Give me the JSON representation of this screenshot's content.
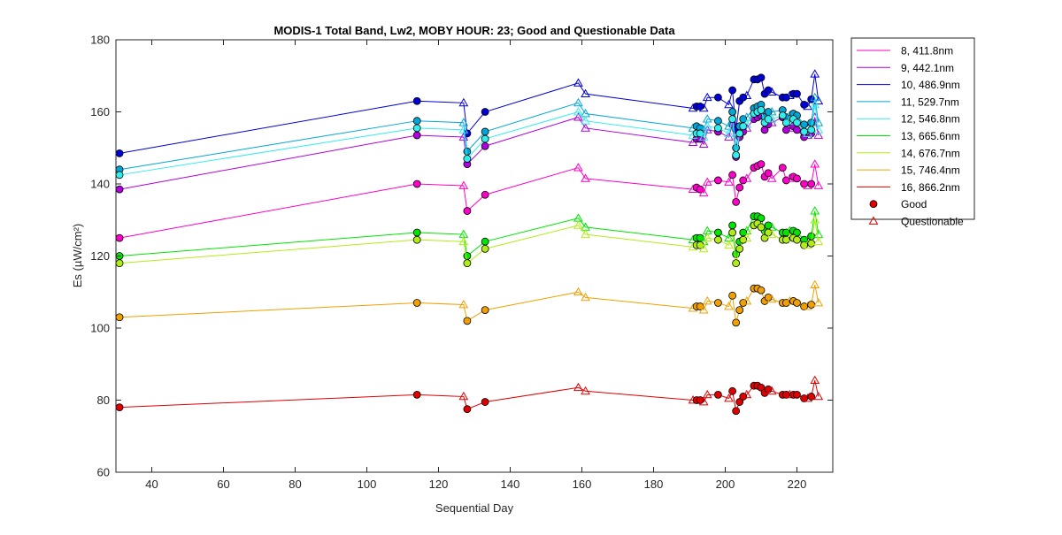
{
  "chart_data": {
    "type": "line",
    "title": "MODIS-1 Total Band,  Lw2, MOBY HOUR: 23;  Good and Questionable Data",
    "xlabel": "Sequential Day",
    "ylabel": "Es (µW/cm²)",
    "xlim": [
      30,
      230
    ],
    "ylim": [
      60,
      180
    ],
    "xticks": [
      "40",
      "60",
      "80",
      "100",
      "120",
      "140",
      "160",
      "180",
      "200",
      "220"
    ],
    "yticks": [
      "60",
      "80",
      "100",
      "120",
      "140",
      "160",
      "180"
    ],
    "grid": false,
    "legend_position": "outside-right",
    "x": [
      31,
      114,
      127,
      128,
      133,
      159,
      161,
      191,
      192,
      193,
      194,
      195,
      198,
      201,
      202,
      203,
      204,
      205,
      206,
      208,
      209,
      210,
      211,
      212,
      213,
      216,
      217,
      218,
      219,
      220,
      222,
      223,
      224,
      225,
      226
    ],
    "status": [
      "G",
      "G",
      "Q",
      "G",
      "G",
      "Q",
      "Q",
      "Q",
      "G",
      "G",
      "Q",
      "Q",
      "G",
      "Q",
      "G",
      "G",
      "G",
      "G",
      "Q",
      "G",
      "G",
      "G",
      "G",
      "G",
      "Q",
      "G",
      "G",
      "Q",
      "G",
      "G",
      "G",
      "Q",
      "G",
      "Q",
      "Q"
    ],
    "series": [
      {
        "name": " 8, 411.8nm",
        "color": "#ff00c8",
        "values": [
          125,
          140,
          139.5,
          132.5,
          137,
          144.5,
          141.5,
          138.5,
          139,
          138.5,
          137.5,
          140.5,
          141,
          140.5,
          142.5,
          135,
          139,
          141,
          141.5,
          144.5,
          145,
          145.5,
          142,
          143,
          141.5,
          144.5,
          141,
          141.5,
          142,
          141.5,
          140,
          139.5,
          140,
          145.5,
          139.5
        ]
      },
      {
        "name": " 9, 442.1nm",
        "color": "#b000e0",
        "values": [
          138.5,
          153.5,
          153,
          145.5,
          150.5,
          158.5,
          155.5,
          151.5,
          152.5,
          152.5,
          151,
          155,
          154.5,
          153,
          156.5,
          147.5,
          153,
          154.5,
          155.5,
          158,
          158.5,
          159,
          155,
          156.5,
          157,
          158.5,
          155,
          155.5,
          156,
          155,
          153,
          153.5,
          154,
          158.5,
          153.5
        ]
      },
      {
        "name": "10, 486.9nm",
        "color": "#0000d8",
        "values": [
          148.5,
          163,
          162.5,
          154,
          160,
          168,
          165,
          161,
          161.5,
          161.5,
          161,
          164,
          164,
          162,
          166,
          155,
          163,
          164,
          164.5,
          169,
          169,
          169.5,
          165,
          166,
          165.5,
          164,
          164,
          164.5,
          165,
          165,
          162,
          161.5,
          163.5,
          170.5,
          163
        ]
      },
      {
        "name": "11, 529.7nm",
        "color": "#00a6d6",
        "values": [
          144,
          157.5,
          157,
          149,
          154.5,
          162.5,
          159.5,
          155.5,
          156,
          155.5,
          155,
          158,
          157.5,
          156,
          160,
          150,
          156,
          158,
          158.5,
          161,
          161.5,
          162,
          158.5,
          160,
          160,
          160.5,
          158.5,
          159,
          159.5,
          159,
          156.5,
          156,
          157,
          164,
          157
        ]
      },
      {
        "name": "12, 546.8nm",
        "color": "#33ecec",
        "values": [
          142.5,
          155.5,
          155,
          147,
          152.5,
          160,
          157.5,
          153.5,
          154,
          154,
          153,
          156,
          155.5,
          154,
          158,
          148,
          154,
          156,
          156.5,
          159.5,
          160,
          160.5,
          157,
          158,
          158,
          159,
          157,
          157.5,
          158,
          157,
          154.5,
          154,
          155,
          162,
          155
        ]
      },
      {
        "name": "13, 665.6nm",
        "color": "#00e600",
        "values": [
          120,
          126.5,
          126,
          120,
          124,
          130.5,
          128,
          124.5,
          125,
          125,
          124,
          127,
          126.5,
          125,
          128.5,
          120.5,
          124,
          126.5,
          127,
          131,
          131,
          130.5,
          127,
          128.5,
          128,
          126.5,
          126.5,
          127,
          127,
          126.5,
          124.5,
          124.5,
          125.5,
          132.5,
          126
        ]
      },
      {
        "name": "14, 676.7nm",
        "color": "#b2ec18",
        "values": [
          118,
          124.5,
          124,
          118,
          122,
          128.5,
          126,
          122.5,
          123,
          123,
          122,
          125,
          124.5,
          123,
          126.5,
          118,
          122,
          124.5,
          125,
          128.5,
          129,
          128,
          125,
          126.5,
          126,
          124.5,
          124.5,
          125,
          125,
          124.5,
          123,
          123,
          123.5,
          130,
          124
        ]
      },
      {
        "name": "15, 746.4nm",
        "color": "#f0a000",
        "values": [
          103,
          107,
          106.5,
          102,
          105,
          110,
          108.5,
          105.5,
          106,
          106,
          105,
          107.5,
          107,
          106,
          109,
          101.5,
          105,
          107,
          107.5,
          111,
          111,
          110.5,
          107.5,
          108.5,
          108,
          107,
          107,
          107.5,
          107.5,
          107,
          106,
          106,
          106.5,
          112,
          107
        ]
      },
      {
        "name": "16, 866.2nm",
        "color": "#e00000",
        "values": [
          78,
          81.5,
          81,
          77.5,
          79.5,
          83.5,
          82.5,
          80,
          80,
          80,
          79.5,
          81.5,
          81.5,
          80.5,
          82.5,
          77,
          79.5,
          81,
          81.5,
          84,
          84,
          83.5,
          82,
          83,
          82.5,
          81.5,
          81.5,
          81.5,
          81.5,
          81.5,
          80.5,
          80.5,
          81,
          85.5,
          81
        ]
      }
    ],
    "legend": {
      "good_label": "Good",
      "questionable_label": "Questionable",
      "good_color": "#e00000",
      "questionable_color": "#e00000"
    }
  }
}
